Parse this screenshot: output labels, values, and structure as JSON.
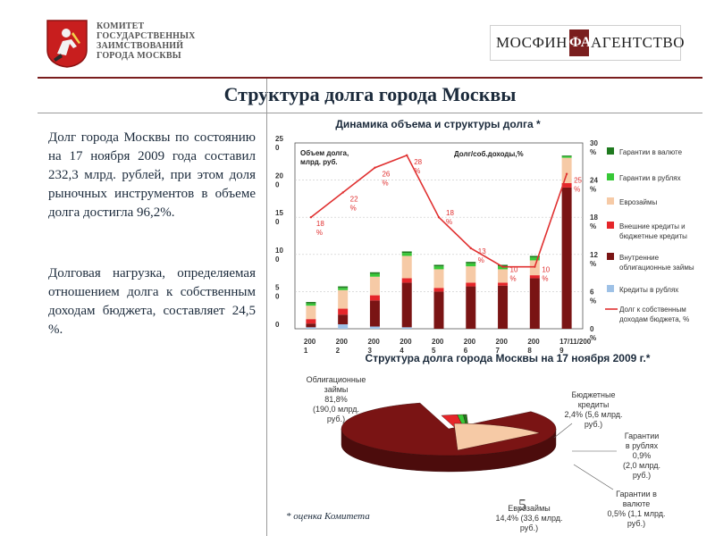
{
  "header": {
    "committee_lines": [
      "КОМИТЕТ",
      "ГОСУДАРСТВЕННЫХ",
      "ЗАИМСТВОВАНИЙ",
      "ГОРОДА МОСКВЫ"
    ],
    "agency_left": "МОСФИН",
    "agency_right": "АГЕНТСТВО"
  },
  "page_title": "Структура долга города Москвы",
  "text": {
    "para1": "Долг города Москвы по состоянию на 17 ноября 2009 года составил 232,3 млрд. рублей, при этом доля рыночных инструментов в объеме долга достигла 96,2%.",
    "para2": "Долговая нагрузка, определяемая отношением долга к собственным доходам бюджета, составляет 24,5 %.",
    "footnote": "* оценка Комитета",
    "page_number": "5"
  },
  "colors": {
    "dark_red": "#7a1414",
    "light_peach": "#f6caa6",
    "red": "#e5262a",
    "bright_green": "#37c837",
    "dark_green": "#1f7a1f",
    "light_blue": "#9ec1e6",
    "line_red": "#e03030",
    "title_navy": "#1b2a3b"
  },
  "chart_data": [
    {
      "type": "bar",
      "title": "Динамика объема и структуры долга *",
      "ylabel": "Объем долга, млрд. руб.",
      "y2label": "Долг/соб.доходы,%",
      "ylim": [
        0,
        250
      ],
      "y_ticks": [
        "25\n0",
        "20\n0",
        "15\n0",
        "10\n0",
        "5\n0",
        "0"
      ],
      "y2lim": [
        0,
        30
      ],
      "y2_ticks": [
        "30\n%",
        "24\n%",
        "18\n%",
        "12\n%",
        "6\n%",
        "0\n%"
      ],
      "categories": [
        "200\n1",
        "200\n2",
        "200\n3",
        "200\n4",
        "200\n5",
        "200\n6",
        "200\n7",
        "200\n8",
        "17/11/200\n9"
      ],
      "stacked": true,
      "series": [
        {
          "name": "Кредиты в рублях",
          "color": "#9ec1e6",
          "values": [
            2,
            6,
            3,
            2,
            0,
            0,
            0,
            0,
            0
          ]
        },
        {
          "name": "Внутренние облигационные займы",
          "color": "#7a1414",
          "values": [
            5,
            13,
            35,
            60,
            50,
            57,
            58,
            68,
            190
          ]
        },
        {
          "name": "Внешние кредиты и бюджетные кредиты",
          "color": "#e5262a",
          "values": [
            6,
            8,
            7,
            6,
            5,
            5,
            4,
            4,
            6
          ]
        },
        {
          "name": "Еврозаймы",
          "color": "#f6caa6",
          "values": [
            18,
            25,
            25,
            30,
            25,
            22,
            18,
            20,
            34
          ]
        },
        {
          "name": "Гарантии в рублях",
          "color": "#37c837",
          "values": [
            3,
            3,
            4,
            4,
            4,
            4,
            4,
            4,
            2
          ]
        },
        {
          "name": "Гарантии в валюте",
          "color": "#1f7a1f",
          "values": [
            2,
            2,
            2,
            2,
            2,
            2,
            2,
            2,
            1
          ]
        }
      ],
      "line": {
        "name": "Долг к собственным доходам бюджета, %",
        "color": "#e03030",
        "values": [
          18,
          22,
          26,
          28,
          18,
          13,
          10,
          10,
          25
        ],
        "labels": [
          "18\n%",
          "22\n%",
          "26\n%",
          "28\n%",
          "18\n%",
          "13\n%",
          "10\n%",
          "10\n%",
          "25\n%"
        ]
      },
      "legend": [
        "Гарантии в валюте",
        "Гарантии в рублях",
        "Еврозаймы",
        "Внешние кредиты и бюджетные кредиты",
        "Внутренние облигационные займы",
        "Кредиты в рублях",
        "Долг к собственным доходам бюджета, %"
      ]
    },
    {
      "type": "pie",
      "title": "Структура долга города Москвы на 17 ноября 2009 г.*",
      "slices": [
        {
          "name": "Облигационные займы",
          "percent": 81.8,
          "label": "Облигационные\nзаймы\n81,8%\n(190,0 млрд.\nруб.)",
          "color": "#7a1414"
        },
        {
          "name": "Бюджетные кредиты",
          "percent": 2.4,
          "label": "Бюджетные\nкредиты\n2,4% (5,6 млрд.\nруб.)",
          "color": "#e5262a"
        },
        {
          "name": "Гарантии в рублях",
          "percent": 0.9,
          "label": "Гарантии\nв рублях\n0,9%\n(2,0 млрд.\nруб.)",
          "color": "#37c837"
        },
        {
          "name": "Гарантии в валюте",
          "percent": 0.5,
          "label": "Гарантии в\nвалюте\n0,5% (1,1 млрд.\nруб.)",
          "color": "#1f7a1f"
        },
        {
          "name": "Еврозаймы",
          "percent": 14.4,
          "label": "Еврозаймы\n14,4% (33,6 млрд.\nруб.)",
          "color": "#f6caa6"
        }
      ]
    }
  ]
}
